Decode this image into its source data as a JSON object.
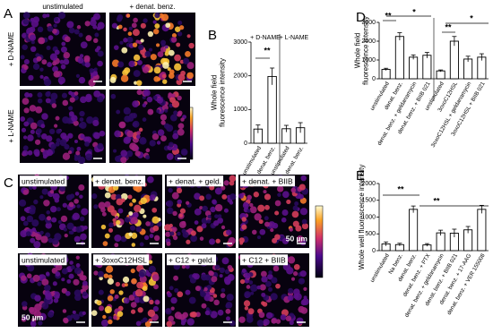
{
  "panels": {
    "A": {
      "label": "A",
      "columns": [
        "unstimulated",
        "+ denat. benz."
      ],
      "rows": [
        "+ D-NAME",
        "+ L-NAME"
      ]
    },
    "C": {
      "label": "C",
      "images": [
        "unstimulated",
        "+ denat. benz.",
        "+ denat. + geld.",
        "+ denat. + BIIB",
        "unstimulated",
        "+ 3oxoC12HSL",
        "+ C12 + geld.",
        "+ C12 + BIIB"
      ],
      "scale_bar": "50 µm"
    }
  },
  "chart_data": [
    {
      "type": "bar",
      "panel_label": "B",
      "ylabel": [
        "Whole field",
        "fluorescence intensity"
      ],
      "categories": [
        "unstimulated",
        "denat. benz.",
        "unstimulated",
        "denat. benz."
      ],
      "values": [
        420,
        1980,
        430,
        460
      ],
      "errors": [
        120,
        250,
        100,
        150
      ],
      "color": "#ffffff",
      "ylim": [
        0,
        3000
      ],
      "yticks": [
        0,
        1000,
        2000,
        3000
      ],
      "annotations": [
        "+ D-NAME",
        "+ L-NAME",
        "**"
      ]
    },
    {
      "type": "bar",
      "panel_label": "D",
      "ylabel": [
        "Whole field",
        "fluorescence intensity"
      ],
      "categories": [
        "unstimulated",
        "denat. benz.",
        "denat. benz. + geldanamycin",
        "denat. benz. + BIIB 021",
        "unstimulated",
        "3oxoC12HSL",
        "3oxoC12HSL + geldanamycin",
        "3oxoC12HSL + BIIB 021"
      ],
      "values": [
        500,
        2250,
        1150,
        1250,
        420,
        2000,
        1050,
        1150
      ],
      "errors": [
        60,
        200,
        120,
        150,
        50,
        250,
        150,
        180
      ],
      "color": "#ffffff",
      "ylim": [
        0,
        3000
      ],
      "yticks": [
        0,
        1000,
        2000,
        3000
      ],
      "annotations": [
        "**",
        "*",
        "**",
        "*"
      ]
    },
    {
      "type": "bar",
      "panel_label": "E",
      "ylabel": [
        "Whole well fluorescence intensity"
      ],
      "categories": [
        "unstimulated",
        "Na benz.",
        "denat. benz.",
        "denat. benz. + PTX",
        "denat. benz. + geldanamycin",
        "denat. benz. + BIIB 021",
        "denat. benz. + 17-AAG",
        "denat. benz. + VER 155008"
      ],
      "values": [
        200,
        180,
        1230,
        170,
        530,
        520,
        620,
        1230
      ],
      "errors": [
        60,
        40,
        100,
        40,
        80,
        120,
        100,
        120
      ],
      "color": "#ffffff",
      "ylim": [
        0,
        2000
      ],
      "yticks": [
        0,
        500,
        1000,
        1500,
        2000
      ],
      "annotations": [
        "**",
        "**"
      ]
    }
  ]
}
